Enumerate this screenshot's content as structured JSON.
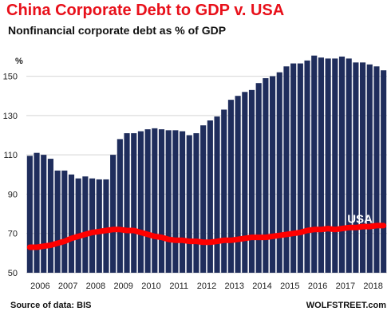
{
  "header": {
    "title": "China Corporate Debt to GDP v. USA",
    "subtitle": "Nonfinancial corporate debt as % of GDP"
  },
  "footer": {
    "source": "Source of data: BIS",
    "brand": "WOLFSTREET.com"
  },
  "colors": {
    "title": "#e8101a",
    "bars": "#1f2d5c",
    "usa_line": "#ff0000",
    "grid": "#d4d4d4"
  },
  "chart_data": {
    "type": "bar",
    "ylabel": "%",
    "ylim": [
      50,
      162
    ],
    "yticks": [
      50,
      70,
      90,
      110,
      130,
      150
    ],
    "grid": true,
    "x_tick_labels": [
      "2006",
      "2007",
      "2008",
      "2009",
      "2010",
      "2011",
      "2012",
      "2013",
      "2014",
      "2015",
      "2016",
      "2017",
      "2018"
    ],
    "series": [
      {
        "name": "China",
        "type": "bar",
        "values": [
          109.5,
          111,
          110,
          108,
          102,
          102,
          100,
          98,
          99,
          98,
          97.5,
          97.5,
          110,
          118,
          121,
          121,
          122,
          123,
          123.5,
          123,
          122.5,
          122.5,
          122,
          120,
          121,
          125,
          127.5,
          129.5,
          133,
          138,
          140,
          142,
          143,
          146.5,
          149,
          150,
          152,
          155,
          156.5,
          156.5,
          158,
          160.5,
          159.5,
          159,
          159,
          160,
          159,
          157,
          157,
          156,
          155,
          153
        ]
      },
      {
        "name": "USA",
        "type": "line",
        "values": [
          63,
          63,
          63.5,
          64,
          65,
          66,
          67.5,
          68.5,
          69.5,
          70.5,
          71,
          71.5,
          72,
          72,
          71.5,
          71.5,
          70.5,
          69.5,
          68.5,
          68,
          67,
          66.5,
          66.5,
          66,
          66,
          65.5,
          65.5,
          66,
          66.5,
          66.5,
          67,
          67.5,
          68,
          68,
          68,
          68.5,
          69,
          69.5,
          70,
          70.5,
          71.5,
          72,
          72,
          72.5,
          72,
          72.5,
          73,
          73,
          73.5,
          73.5,
          74,
          74
        ]
      }
    ]
  }
}
